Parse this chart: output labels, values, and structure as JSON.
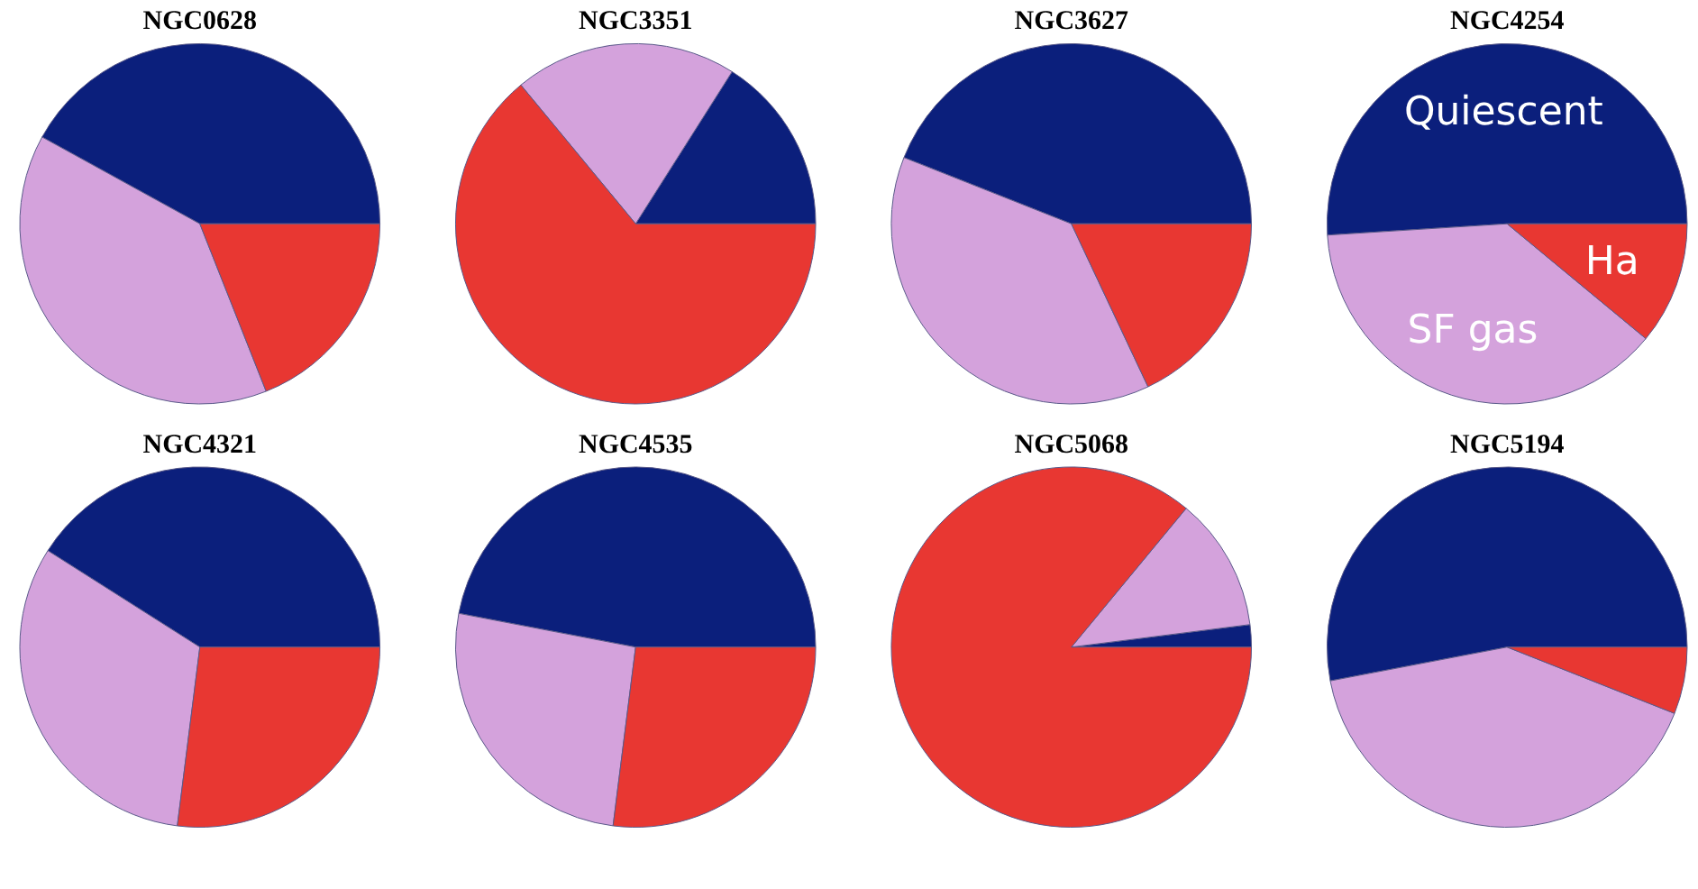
{
  "chart_data": [
    {
      "type": "pie",
      "title": "NGC0628",
      "categories": [
        null,
        null,
        null
      ],
      "values": [
        42,
        39,
        19
      ],
      "colors": [
        "#0b1f7c",
        "#d4a2dc",
        "#e83732"
      ],
      "legend": false
    },
    {
      "type": "pie",
      "title": "NGC3351",
      "categories": [
        null,
        null,
        null
      ],
      "values": [
        16,
        20,
        64
      ],
      "colors": [
        "#0b1f7c",
        "#d4a2dc",
        "#e83732"
      ],
      "legend": false
    },
    {
      "type": "pie",
      "title": "NGC3627",
      "categories": [
        null,
        null,
        null
      ],
      "values": [
        44,
        38,
        18
      ],
      "colors": [
        "#0b1f7c",
        "#d4a2dc",
        "#e83732"
      ],
      "legend": false
    },
    {
      "type": "pie",
      "title": "NGC4254",
      "categories": [
        "Quiescent",
        "SF gas",
        "Ha"
      ],
      "values": [
        51,
        38,
        11
      ],
      "colors": [
        "#0b1f7c",
        "#d4a2dc",
        "#e83732"
      ],
      "legend": false
    },
    {
      "type": "pie",
      "title": "NGC4321",
      "categories": [
        null,
        null,
        null
      ],
      "values": [
        41,
        32,
        27
      ],
      "colors": [
        "#0b1f7c",
        "#d4a2dc",
        "#e83732"
      ],
      "legend": false
    },
    {
      "type": "pie",
      "title": "NGC4535",
      "categories": [
        null,
        null,
        null
      ],
      "values": [
        47,
        26,
        27
      ],
      "colors": [
        "#0b1f7c",
        "#d4a2dc",
        "#e83732"
      ],
      "legend": false
    },
    {
      "type": "pie",
      "title": "NGC5068",
      "categories": [
        null,
        null,
        null
      ],
      "values": [
        2,
        12,
        86
      ],
      "colors": [
        "#0b1f7c",
        "#d4a2dc",
        "#e83732"
      ],
      "legend": false
    },
    {
      "type": "pie",
      "title": "NGC5194",
      "categories": [
        null,
        null,
        null
      ],
      "values": [
        53,
        41,
        6
      ],
      "colors": [
        "#0b1f7c",
        "#d4a2dc",
        "#e83732"
      ],
      "legend": false
    }
  ]
}
